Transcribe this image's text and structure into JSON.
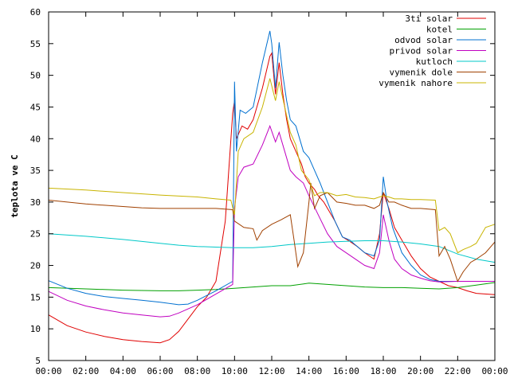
{
  "chart_data": {
    "type": "line",
    "title": "",
    "xlabel": "",
    "ylabel": "teplota ve C",
    "xlim": [
      0,
      24
    ],
    "ylim": [
      5,
      60
    ],
    "grid": false,
    "legend_position": "top-right",
    "x_ticks": [
      {
        "value": 0,
        "label": "00:00"
      },
      {
        "value": 2,
        "label": "02:00"
      },
      {
        "value": 4,
        "label": "04:00"
      },
      {
        "value": 6,
        "label": "06:00"
      },
      {
        "value": 8,
        "label": "08:00"
      },
      {
        "value": 10,
        "label": "10:00"
      },
      {
        "value": 12,
        "label": "12:00"
      },
      {
        "value": 14,
        "label": "14:00"
      },
      {
        "value": 16,
        "label": "16:00"
      },
      {
        "value": 18,
        "label": "18:00"
      },
      {
        "value": 20,
        "label": "20:00"
      },
      {
        "value": 22,
        "label": "22:00"
      },
      {
        "value": 24,
        "label": "00:00"
      }
    ],
    "y_ticks": [
      {
        "value": 5,
        "label": "5"
      },
      {
        "value": 10,
        "label": "10"
      },
      {
        "value": 15,
        "label": "15"
      },
      {
        "value": 20,
        "label": "20"
      },
      {
        "value": 25,
        "label": "25"
      },
      {
        "value": 30,
        "label": "30"
      },
      {
        "value": 35,
        "label": "35"
      },
      {
        "value": 40,
        "label": "40"
      },
      {
        "value": 45,
        "label": "45"
      },
      {
        "value": 50,
        "label": "50"
      },
      {
        "value": 55,
        "label": "55"
      },
      {
        "value": 60,
        "label": "60"
      }
    ],
    "series": [
      {
        "name": "3ti solar",
        "color": "#e00000",
        "points": [
          [
            0,
            12.2
          ],
          [
            1,
            10.5
          ],
          [
            2,
            9.5
          ],
          [
            3,
            8.8
          ],
          [
            4,
            8.3
          ],
          [
            5,
            8.0
          ],
          [
            6,
            7.8
          ],
          [
            6.5,
            8.3
          ],
          [
            7,
            9.6
          ],
          [
            8,
            13.5
          ],
          [
            8.5,
            15.0
          ],
          [
            9,
            17.5
          ],
          [
            9.5,
            27
          ],
          [
            9.9,
            44
          ],
          [
            10,
            46
          ],
          [
            10.1,
            40
          ],
          [
            10.4,
            42
          ],
          [
            10.7,
            41.5
          ],
          [
            11,
            43
          ],
          [
            11.5,
            48
          ],
          [
            11.9,
            53
          ],
          [
            12,
            53.5
          ],
          [
            12.2,
            47
          ],
          [
            12.4,
            52
          ],
          [
            12.6,
            47
          ],
          [
            12.8,
            43
          ],
          [
            13,
            40
          ],
          [
            13.3,
            38
          ],
          [
            13.6,
            36
          ],
          [
            13.8,
            34
          ],
          [
            14,
            33
          ],
          [
            14.3,
            32
          ],
          [
            14.5,
            31
          ],
          [
            14.8,
            30
          ],
          [
            15,
            29
          ],
          [
            15.4,
            27
          ],
          [
            15.8,
            24.5
          ],
          [
            16.2,
            23.8
          ],
          [
            16.6,
            23
          ],
          [
            17,
            22
          ],
          [
            17.5,
            21
          ],
          [
            17.8,
            25
          ],
          [
            18,
            31.5
          ],
          [
            18.3,
            29
          ],
          [
            18.6,
            26
          ],
          [
            19,
            24
          ],
          [
            19.5,
            21.5
          ],
          [
            20,
            19.5
          ],
          [
            20.5,
            18.2
          ],
          [
            21,
            17.5
          ],
          [
            21.5,
            16.8
          ],
          [
            22,
            16.5
          ],
          [
            22.5,
            16
          ],
          [
            23,
            15.6
          ],
          [
            24,
            15.4
          ]
        ]
      },
      {
        "name": "kotel",
        "color": "#00a000",
        "points": [
          [
            0,
            16.5
          ],
          [
            2,
            16.3
          ],
          [
            4,
            16.1
          ],
          [
            6,
            16.0
          ],
          [
            7,
            16.0
          ],
          [
            8,
            16.1
          ],
          [
            9,
            16.2
          ],
          [
            10,
            16.4
          ],
          [
            11,
            16.6
          ],
          [
            12,
            16.8
          ],
          [
            13,
            16.8
          ],
          [
            14,
            17.2
          ],
          [
            15,
            17.0
          ],
          [
            16,
            16.8
          ],
          [
            17,
            16.6
          ],
          [
            18,
            16.5
          ],
          [
            19,
            16.5
          ],
          [
            20,
            16.4
          ],
          [
            21,
            16.3
          ],
          [
            22,
            16.5
          ],
          [
            23,
            16.9
          ],
          [
            24,
            17.3
          ]
        ]
      },
      {
        "name": "odvod solar",
        "color": "#0070d0",
        "points": [
          [
            0,
            17.6
          ],
          [
            1,
            16.4
          ],
          [
            2,
            15.6
          ],
          [
            3,
            15.1
          ],
          [
            4,
            14.8
          ],
          [
            5,
            14.5
          ],
          [
            6,
            14.2
          ],
          [
            7,
            13.8
          ],
          [
            7.5,
            13.9
          ],
          [
            8,
            14.5
          ],
          [
            9,
            16
          ],
          [
            9.9,
            17.5
          ],
          [
            10,
            49
          ],
          [
            10.1,
            38
          ],
          [
            10.3,
            44.5
          ],
          [
            10.6,
            44
          ],
          [
            11,
            45
          ],
          [
            11.5,
            52
          ],
          [
            11.9,
            57
          ],
          [
            12,
            55
          ],
          [
            12.2,
            48
          ],
          [
            12.4,
            55.2
          ],
          [
            12.6,
            50
          ],
          [
            12.8,
            46
          ],
          [
            13,
            43
          ],
          [
            13.3,
            42
          ],
          [
            13.7,
            38
          ],
          [
            14,
            37
          ],
          [
            14.3,
            35
          ],
          [
            14.6,
            33
          ],
          [
            15,
            30
          ],
          [
            15.4,
            27
          ],
          [
            15.8,
            24.5
          ],
          [
            16.2,
            24
          ],
          [
            16.6,
            23
          ],
          [
            17,
            22
          ],
          [
            17.5,
            21.5
          ],
          [
            17.8,
            24
          ],
          [
            18,
            34
          ],
          [
            18.2,
            30
          ],
          [
            18.5,
            26
          ],
          [
            19,
            22
          ],
          [
            19.5,
            20
          ],
          [
            20,
            18.5
          ],
          [
            20.5,
            17.8
          ],
          [
            21,
            17.5
          ],
          [
            22,
            17.5
          ],
          [
            23,
            17.5
          ],
          [
            24,
            17.5
          ]
        ]
      },
      {
        "name": "privod solar",
        "color": "#c000c0",
        "points": [
          [
            0,
            15.9
          ],
          [
            1,
            14.5
          ],
          [
            2,
            13.6
          ],
          [
            3,
            13.0
          ],
          [
            4,
            12.5
          ],
          [
            5,
            12.2
          ],
          [
            6,
            11.9
          ],
          [
            6.5,
            12.0
          ],
          [
            7,
            12.5
          ],
          [
            8,
            13.8
          ],
          [
            9,
            15.5
          ],
          [
            9.9,
            17
          ],
          [
            10,
            29
          ],
          [
            10.2,
            34
          ],
          [
            10.5,
            35.5
          ],
          [
            11,
            36
          ],
          [
            11.5,
            39
          ],
          [
            11.9,
            42
          ],
          [
            12.2,
            39.5
          ],
          [
            12.4,
            41
          ],
          [
            12.7,
            38
          ],
          [
            13,
            35
          ],
          [
            13.3,
            34
          ],
          [
            13.7,
            33
          ],
          [
            14,
            31
          ],
          [
            14.5,
            28
          ],
          [
            15,
            25
          ],
          [
            15.5,
            23
          ],
          [
            16,
            22
          ],
          [
            16.5,
            21
          ],
          [
            17,
            20
          ],
          [
            17.5,
            19.5
          ],
          [
            17.8,
            22
          ],
          [
            18,
            28
          ],
          [
            18.3,
            24
          ],
          [
            18.6,
            21
          ],
          [
            19,
            19.5
          ],
          [
            19.5,
            18.5
          ],
          [
            20,
            18
          ],
          [
            20.5,
            17.6
          ],
          [
            21,
            17.4
          ],
          [
            22,
            17.5
          ],
          [
            23,
            17.5
          ],
          [
            24,
            17.5
          ]
        ]
      },
      {
        "name": "kutloch",
        "color": "#00c8c8",
        "points": [
          [
            0,
            25.0
          ],
          [
            2,
            24.6
          ],
          [
            4,
            24.1
          ],
          [
            6,
            23.5
          ],
          [
            7,
            23.2
          ],
          [
            8,
            23.0
          ],
          [
            9,
            22.9
          ],
          [
            10,
            22.8
          ],
          [
            11,
            22.8
          ],
          [
            12,
            23.0
          ],
          [
            13,
            23.3
          ],
          [
            14,
            23.5
          ],
          [
            15,
            23.7
          ],
          [
            16,
            23.8
          ],
          [
            17,
            23.9
          ],
          [
            18,
            23.9
          ],
          [
            19,
            23.7
          ],
          [
            20,
            23.4
          ],
          [
            21,
            23.0
          ],
          [
            22,
            21.8
          ],
          [
            23,
            21.0
          ],
          [
            24,
            20.5
          ]
        ]
      },
      {
        "name": "vymenik dole",
        "color": "#a04000",
        "points": [
          [
            0,
            30.3
          ],
          [
            1,
            30.0
          ],
          [
            2,
            29.7
          ],
          [
            3,
            29.5
          ],
          [
            4,
            29.3
          ],
          [
            5,
            29.1
          ],
          [
            6,
            29.0
          ],
          [
            7,
            29.0
          ],
          [
            8,
            29.0
          ],
          [
            9,
            29.0
          ],
          [
            9.9,
            28.8
          ],
          [
            10,
            27
          ],
          [
            10.5,
            26
          ],
          [
            11,
            25.8
          ],
          [
            11.2,
            24.0
          ],
          [
            11.5,
            25.5
          ],
          [
            12,
            26.5
          ],
          [
            12.5,
            27.2
          ],
          [
            13,
            28
          ],
          [
            13.2,
            24
          ],
          [
            13.4,
            19.8
          ],
          [
            13.7,
            22
          ],
          [
            14,
            30
          ],
          [
            14.1,
            33
          ],
          [
            14.3,
            29
          ],
          [
            14.6,
            31
          ],
          [
            15,
            31.5
          ],
          [
            15.5,
            30
          ],
          [
            16,
            29.8
          ],
          [
            16.5,
            29.5
          ],
          [
            17,
            29.5
          ],
          [
            17.5,
            29
          ],
          [
            17.8,
            29.5
          ],
          [
            18,
            31.5
          ],
          [
            18.3,
            30
          ],
          [
            18.6,
            30
          ],
          [
            19,
            29.5
          ],
          [
            19.5,
            29
          ],
          [
            20,
            29
          ],
          [
            20.8,
            28.8
          ],
          [
            21,
            21.5
          ],
          [
            21.3,
            23
          ],
          [
            21.6,
            21
          ],
          [
            22,
            17.5
          ],
          [
            22.3,
            19
          ],
          [
            22.7,
            20.5
          ],
          [
            23,
            21
          ],
          [
            23.5,
            22
          ],
          [
            24,
            23.7
          ]
        ]
      },
      {
        "name": "vymenik nahore",
        "color": "#c8b400",
        "points": [
          [
            0,
            32.2
          ],
          [
            2,
            31.9
          ],
          [
            4,
            31.5
          ],
          [
            6,
            31.1
          ],
          [
            8,
            30.8
          ],
          [
            9,
            30.5
          ],
          [
            9.8,
            30.3
          ],
          [
            10,
            28
          ],
          [
            10.2,
            38
          ],
          [
            10.5,
            40
          ],
          [
            11,
            41
          ],
          [
            11.5,
            45
          ],
          [
            11.9,
            49.5
          ],
          [
            12.2,
            46
          ],
          [
            12.4,
            49
          ],
          [
            12.7,
            45
          ],
          [
            13,
            41
          ],
          [
            13.3,
            39
          ],
          [
            13.6,
            35
          ],
          [
            14,
            33.5
          ],
          [
            14.3,
            31
          ],
          [
            14.6,
            31.5
          ],
          [
            15,
            31.5
          ],
          [
            15.5,
            31
          ],
          [
            16,
            31.2
          ],
          [
            16.5,
            30.8
          ],
          [
            17,
            30.7
          ],
          [
            17.5,
            30.5
          ],
          [
            18,
            31
          ],
          [
            18.3,
            30.8
          ],
          [
            18.6,
            30.5
          ],
          [
            19,
            30.5
          ],
          [
            19.5,
            30.4
          ],
          [
            20,
            30.4
          ],
          [
            20.8,
            30.3
          ],
          [
            21,
            25.5
          ],
          [
            21.3,
            26
          ],
          [
            21.6,
            25
          ],
          [
            22,
            22
          ],
          [
            22.3,
            22.5
          ],
          [
            22.7,
            23
          ],
          [
            23,
            23.5
          ],
          [
            23.5,
            26
          ],
          [
            24,
            26.5
          ]
        ]
      }
    ]
  }
}
